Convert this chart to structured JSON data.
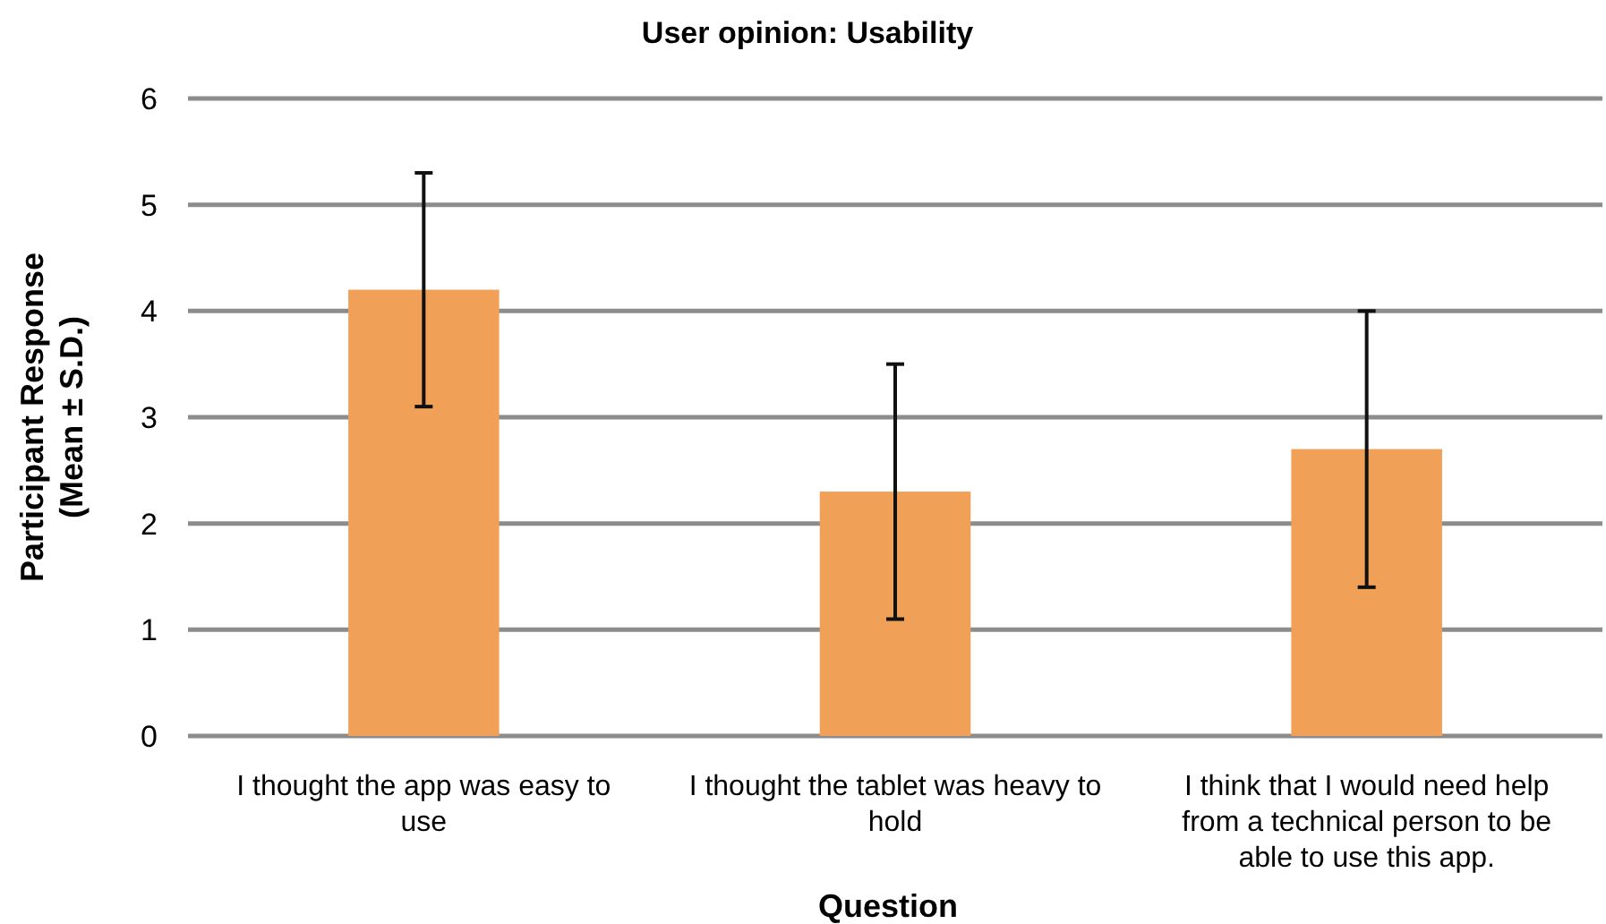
{
  "chart_data": {
    "type": "bar",
    "title": "User opinion: Usability",
    "xlabel": "Question",
    "ylabel": "Participant Response\n(Mean ± S.D.)",
    "categories": [
      "I thought the app was easy to use",
      "I thought the tablet was heavy to hold",
      "I think that I would need help from a technical person to be able to use this app."
    ],
    "values": [
      4.2,
      2.3,
      2.7
    ],
    "errors": [
      1.1,
      1.2,
      1.3
    ],
    "color": "#f0a057",
    "ylim": [
      0,
      6
    ],
    "yticks": [
      0,
      1,
      2,
      3,
      4,
      5,
      6
    ],
    "grid": "y"
  }
}
